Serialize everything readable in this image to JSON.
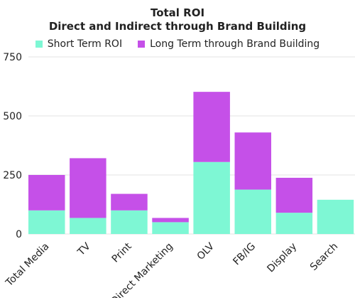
{
  "chart_data": {
    "type": "bar",
    "stacked": true,
    "title": "Total ROI",
    "subtitle": "Direct and Indirect through Brand Building",
    "categories": [
      "Total Media",
      "TV",
      "Print",
      "Direct Marketing",
      "OLV",
      "FB/IG",
      "Display",
      "Search"
    ],
    "series": [
      {
        "name": "Short Term ROI",
        "color": "#7ef7d4",
        "values": [
          100,
          68,
          100,
          50,
          305,
          188,
          90,
          145
        ]
      },
      {
        "name": "Long Term through Brand Building",
        "color": "#c550e8",
        "values": [
          150,
          253,
          70,
          18,
          297,
          242,
          148,
          0
        ]
      }
    ],
    "ylim": [
      0,
      750
    ],
    "yticks": [
      0,
      250,
      500,
      750
    ],
    "grid": true,
    "legend_position": "top"
  }
}
